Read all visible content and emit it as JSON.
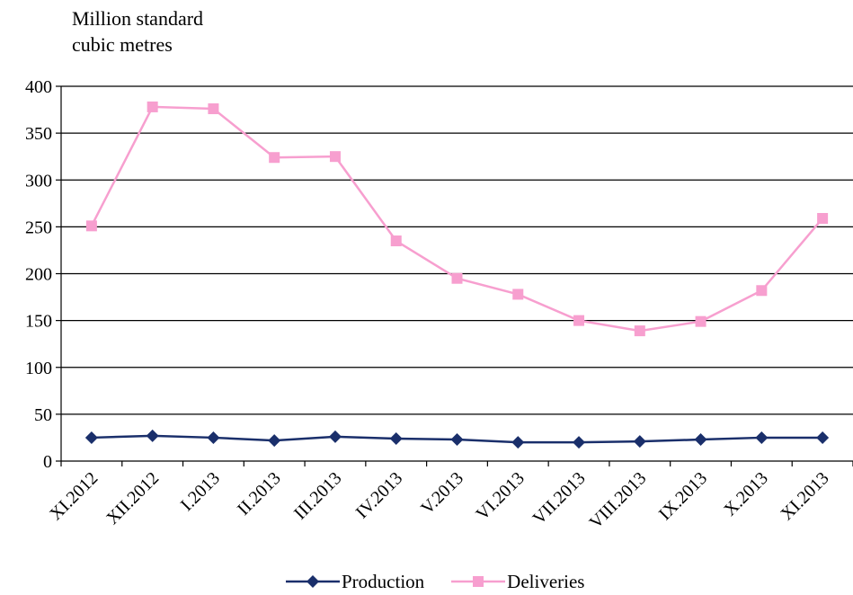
{
  "chart_data": {
    "type": "line",
    "ylabel": "Million standard cubic metres",
    "ylabel_lines": [
      "Million standard",
      "cubic metres"
    ],
    "categories": [
      "XI.2012",
      "XII.2012",
      "I.2013",
      "II.2013",
      "III.2013",
      "IV.2013",
      "V.2013",
      "VI.2013",
      "VII.2013",
      "VIII.2013",
      "IX.2013",
      "X.2013",
      "XI.2013"
    ],
    "ylim": [
      0,
      400
    ],
    "yticks": [
      0,
      50,
      100,
      150,
      200,
      250,
      300,
      350,
      400
    ],
    "grid": true,
    "legend_position": "bottom",
    "series": [
      {
        "name": "Production",
        "color": "#1a2f6b",
        "marker": "diamond",
        "values": [
          25,
          27,
          25,
          22,
          26,
          24,
          23,
          20,
          20,
          21,
          23,
          25,
          25
        ]
      },
      {
        "name": "Deliveries",
        "color": "#f79fcf",
        "marker": "square",
        "values": [
          251,
          378,
          376,
          324,
          325,
          235,
          195,
          178,
          150,
          139,
          149,
          182,
          259
        ]
      }
    ]
  }
}
